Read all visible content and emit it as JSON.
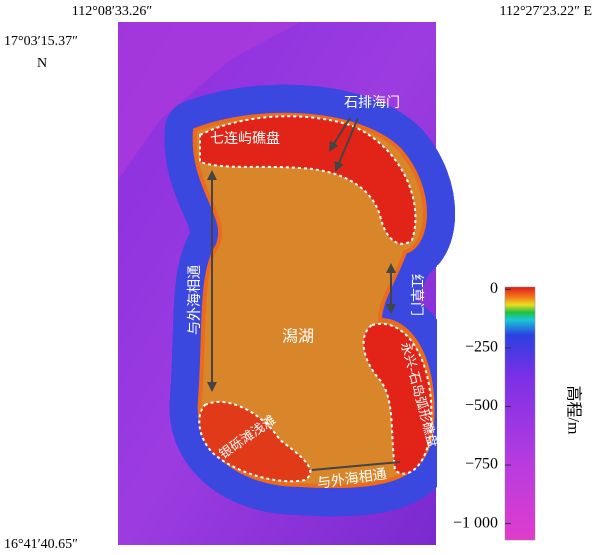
{
  "coordinates": {
    "top_left_lon": "112°08′33.26″",
    "top_right_lon": "112°27′23.22″ E",
    "top_lat": "17°03′15.37″",
    "north": "N",
    "bottom_lat": "16°41′40.65″"
  },
  "annotations": {
    "gate_top": "石排海门",
    "reef_north": "七连屿礁盘",
    "gate_right": "红草门",
    "channel_left": "与外海相通",
    "lagoon": "潟湖",
    "reef_east": "永兴-石岛弧形礁盘",
    "shoal": "银砾滩浅滩",
    "channel_bottom": "与外海相通"
  },
  "colorbar": {
    "label": "高程/m",
    "lim": [
      -1070,
      10
    ],
    "ticks": [
      0,
      {
        "value": -250,
        "label": "−250"
      },
      {
        "value": -500,
        "label": "−500"
      },
      {
        "value": -750,
        "label": "−750"
      },
      {
        "value": -1000,
        "label": "−1 000"
      }
    ],
    "colors": [
      "#e31a1c",
      "#f07a1a",
      "#eedd22",
      "#22c040",
      "#18c8d8",
      "#2a40e0",
      "#7a30e6",
      "#b83ce0",
      "#e03ccc"
    ]
  }
}
